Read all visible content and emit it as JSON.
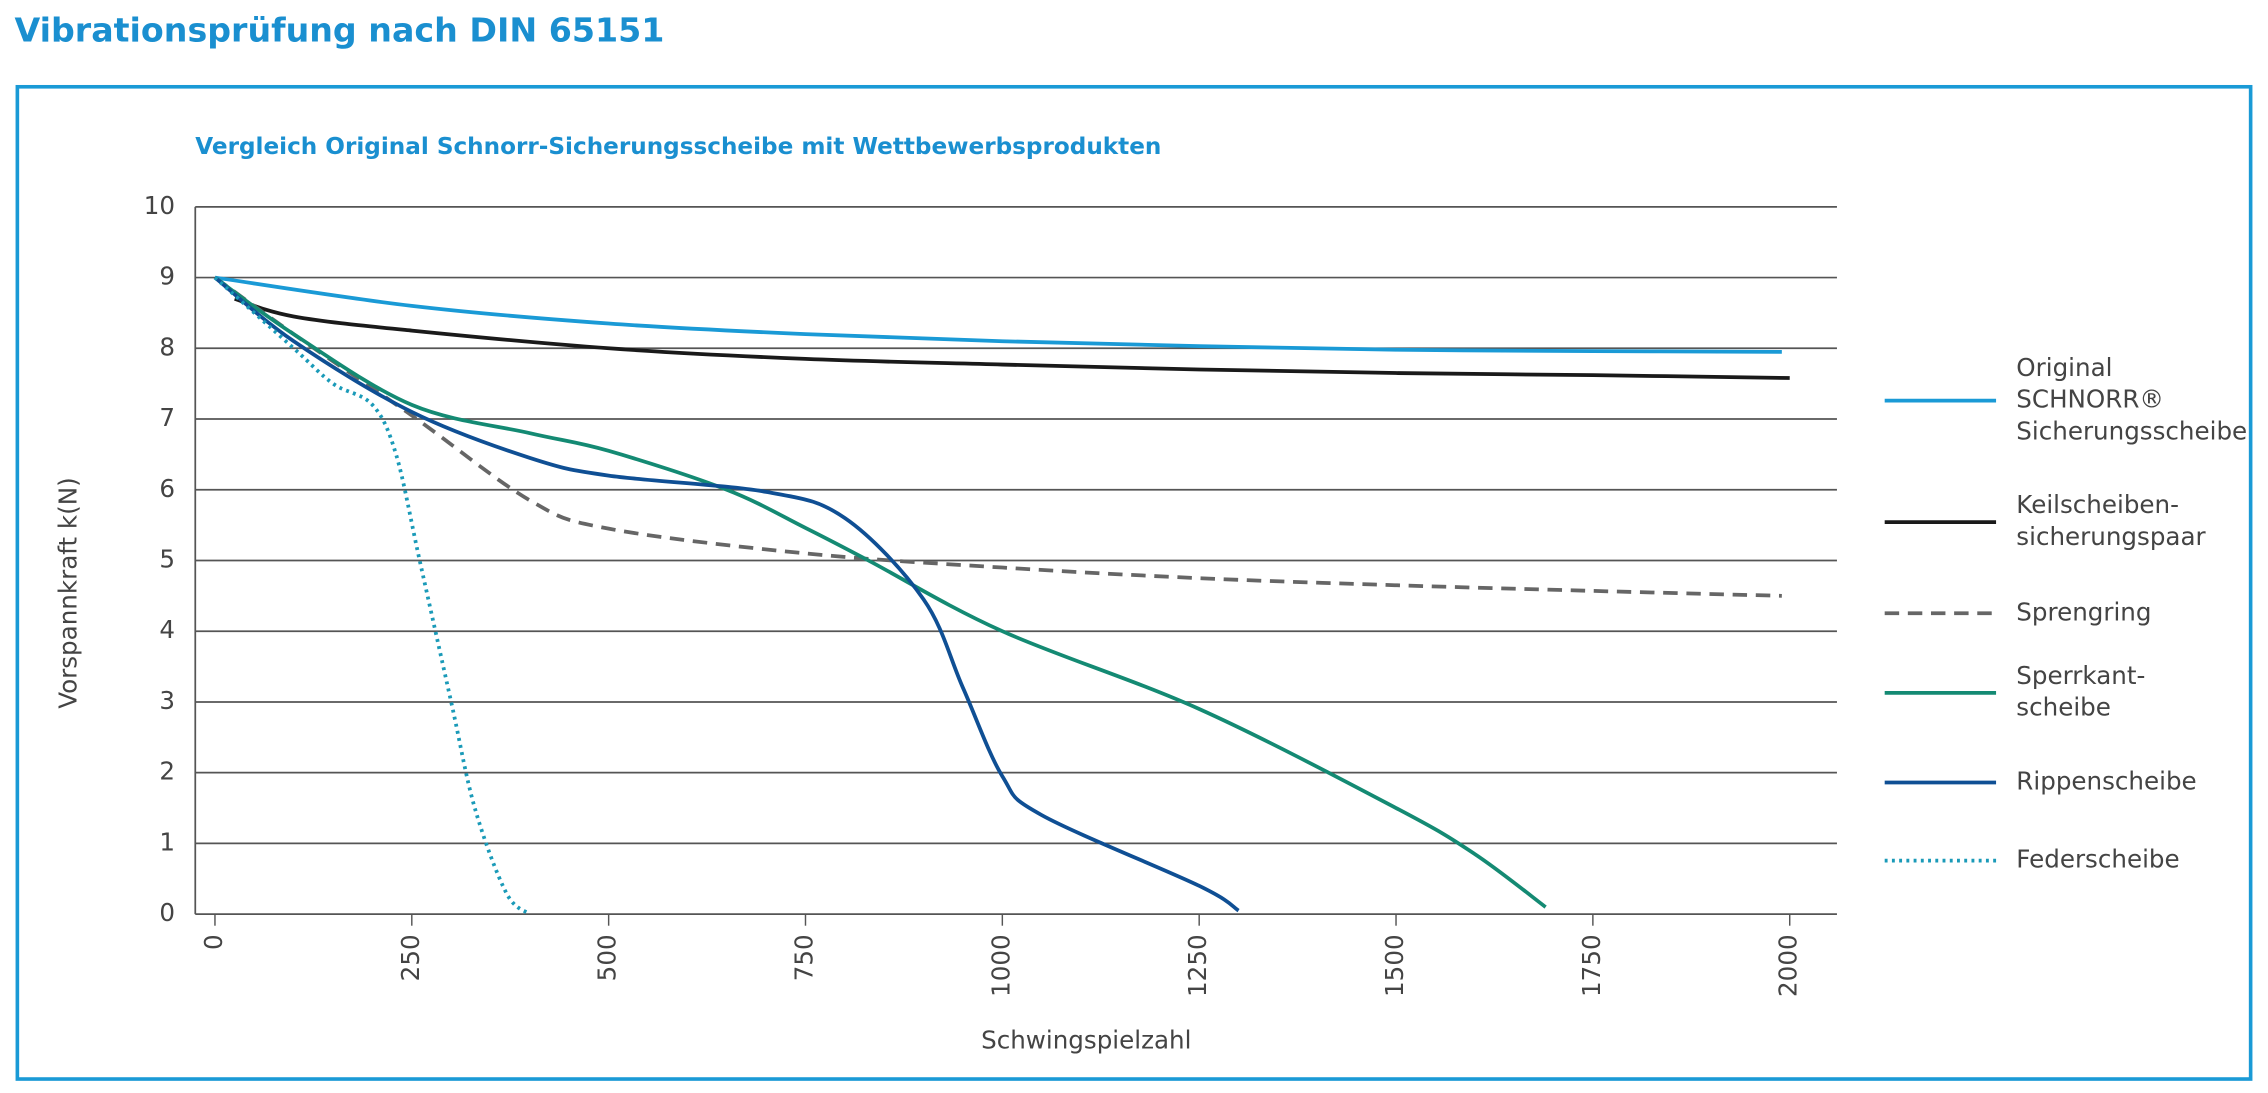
{
  "page_title": "Vibrationsprüfung nach DIN 65151",
  "chart_data": {
    "type": "line",
    "title": "Vergleich Original Schnorr-Sicherungsscheibe mit Wettbewerbsprodukten",
    "x_label": "Schwingspielzahl",
    "y_label": "Vorspannkraft k(N)",
    "xlim": [
      -25,
      2060
    ],
    "ylim": [
      0,
      10
    ],
    "xticks": [
      0,
      250,
      500,
      750,
      1000,
      1250,
      1500,
      1750,
      2000
    ],
    "yticks": [
      0,
      1,
      2,
      3,
      4,
      5,
      6,
      7,
      8,
      9,
      10
    ],
    "grid": true,
    "legend": "right",
    "series": [
      {
        "name": "Original\nSCHNORR®\nSicherungsscheibe",
        "color": "#1a9ad6",
        "dash": "solid",
        "x": [
          0,
          250,
          500,
          750,
          1000,
          1250,
          1500,
          1750,
          1990
        ],
        "values": [
          9.0,
          8.6,
          8.35,
          8.2,
          8.1,
          8.03,
          7.98,
          7.96,
          7.95
        ]
      },
      {
        "name": "Keilscheiben-\nsicherungspaar",
        "color": "#1a1a1a",
        "dash": "solid",
        "x": [
          25,
          100,
          250,
          500,
          750,
          1000,
          1250,
          1500,
          1750,
          2000
        ],
        "values": [
          8.7,
          8.45,
          8.25,
          8.0,
          7.85,
          7.77,
          7.7,
          7.65,
          7.62,
          7.58
        ]
      },
      {
        "name": "Sprengring",
        "color": "#666666",
        "dash": "dashed",
        "x": [
          0,
          100,
          250,
          400,
          500,
          750,
          1000,
          1250,
          1500,
          1750,
          1990
        ],
        "values": [
          9.0,
          8.2,
          7.05,
          5.85,
          5.45,
          5.1,
          4.9,
          4.75,
          4.65,
          4.57,
          4.5
        ]
      },
      {
        "name": "Sperrkant-\nscheibe",
        "color": "#148a73",
        "dash": "solid",
        "x": [
          0,
          100,
          250,
          400,
          500,
          650,
          750,
          830,
          1000,
          1250,
          1500,
          1600,
          1690
        ],
        "values": [
          9.0,
          8.2,
          7.2,
          6.8,
          6.55,
          6.0,
          5.46,
          5.0,
          4.0,
          2.9,
          1.5,
          0.85,
          0.1
        ]
      },
      {
        "name": "Rippenscheibe",
        "color": "#0f4f94",
        "dash": "solid",
        "x": [
          0,
          100,
          250,
          400,
          500,
          700,
          800,
          900,
          950,
          1000,
          1050,
          1250,
          1300
        ],
        "values": [
          9.0,
          8.1,
          7.1,
          6.45,
          6.2,
          5.97,
          5.6,
          4.45,
          3.2,
          1.95,
          1.4,
          0.4,
          0.05
        ]
      },
      {
        "name": "Federscheibe",
        "color": "#1a9ab8",
        "dash": "dotted",
        "x": [
          0,
          100,
          150,
          200,
          230,
          260,
          300,
          330,
          370,
          400
        ],
        "values": [
          9.0,
          8.0,
          7.5,
          7.2,
          6.5,
          5.0,
          3.0,
          1.5,
          0.3,
          0.0
        ]
      }
    ]
  }
}
